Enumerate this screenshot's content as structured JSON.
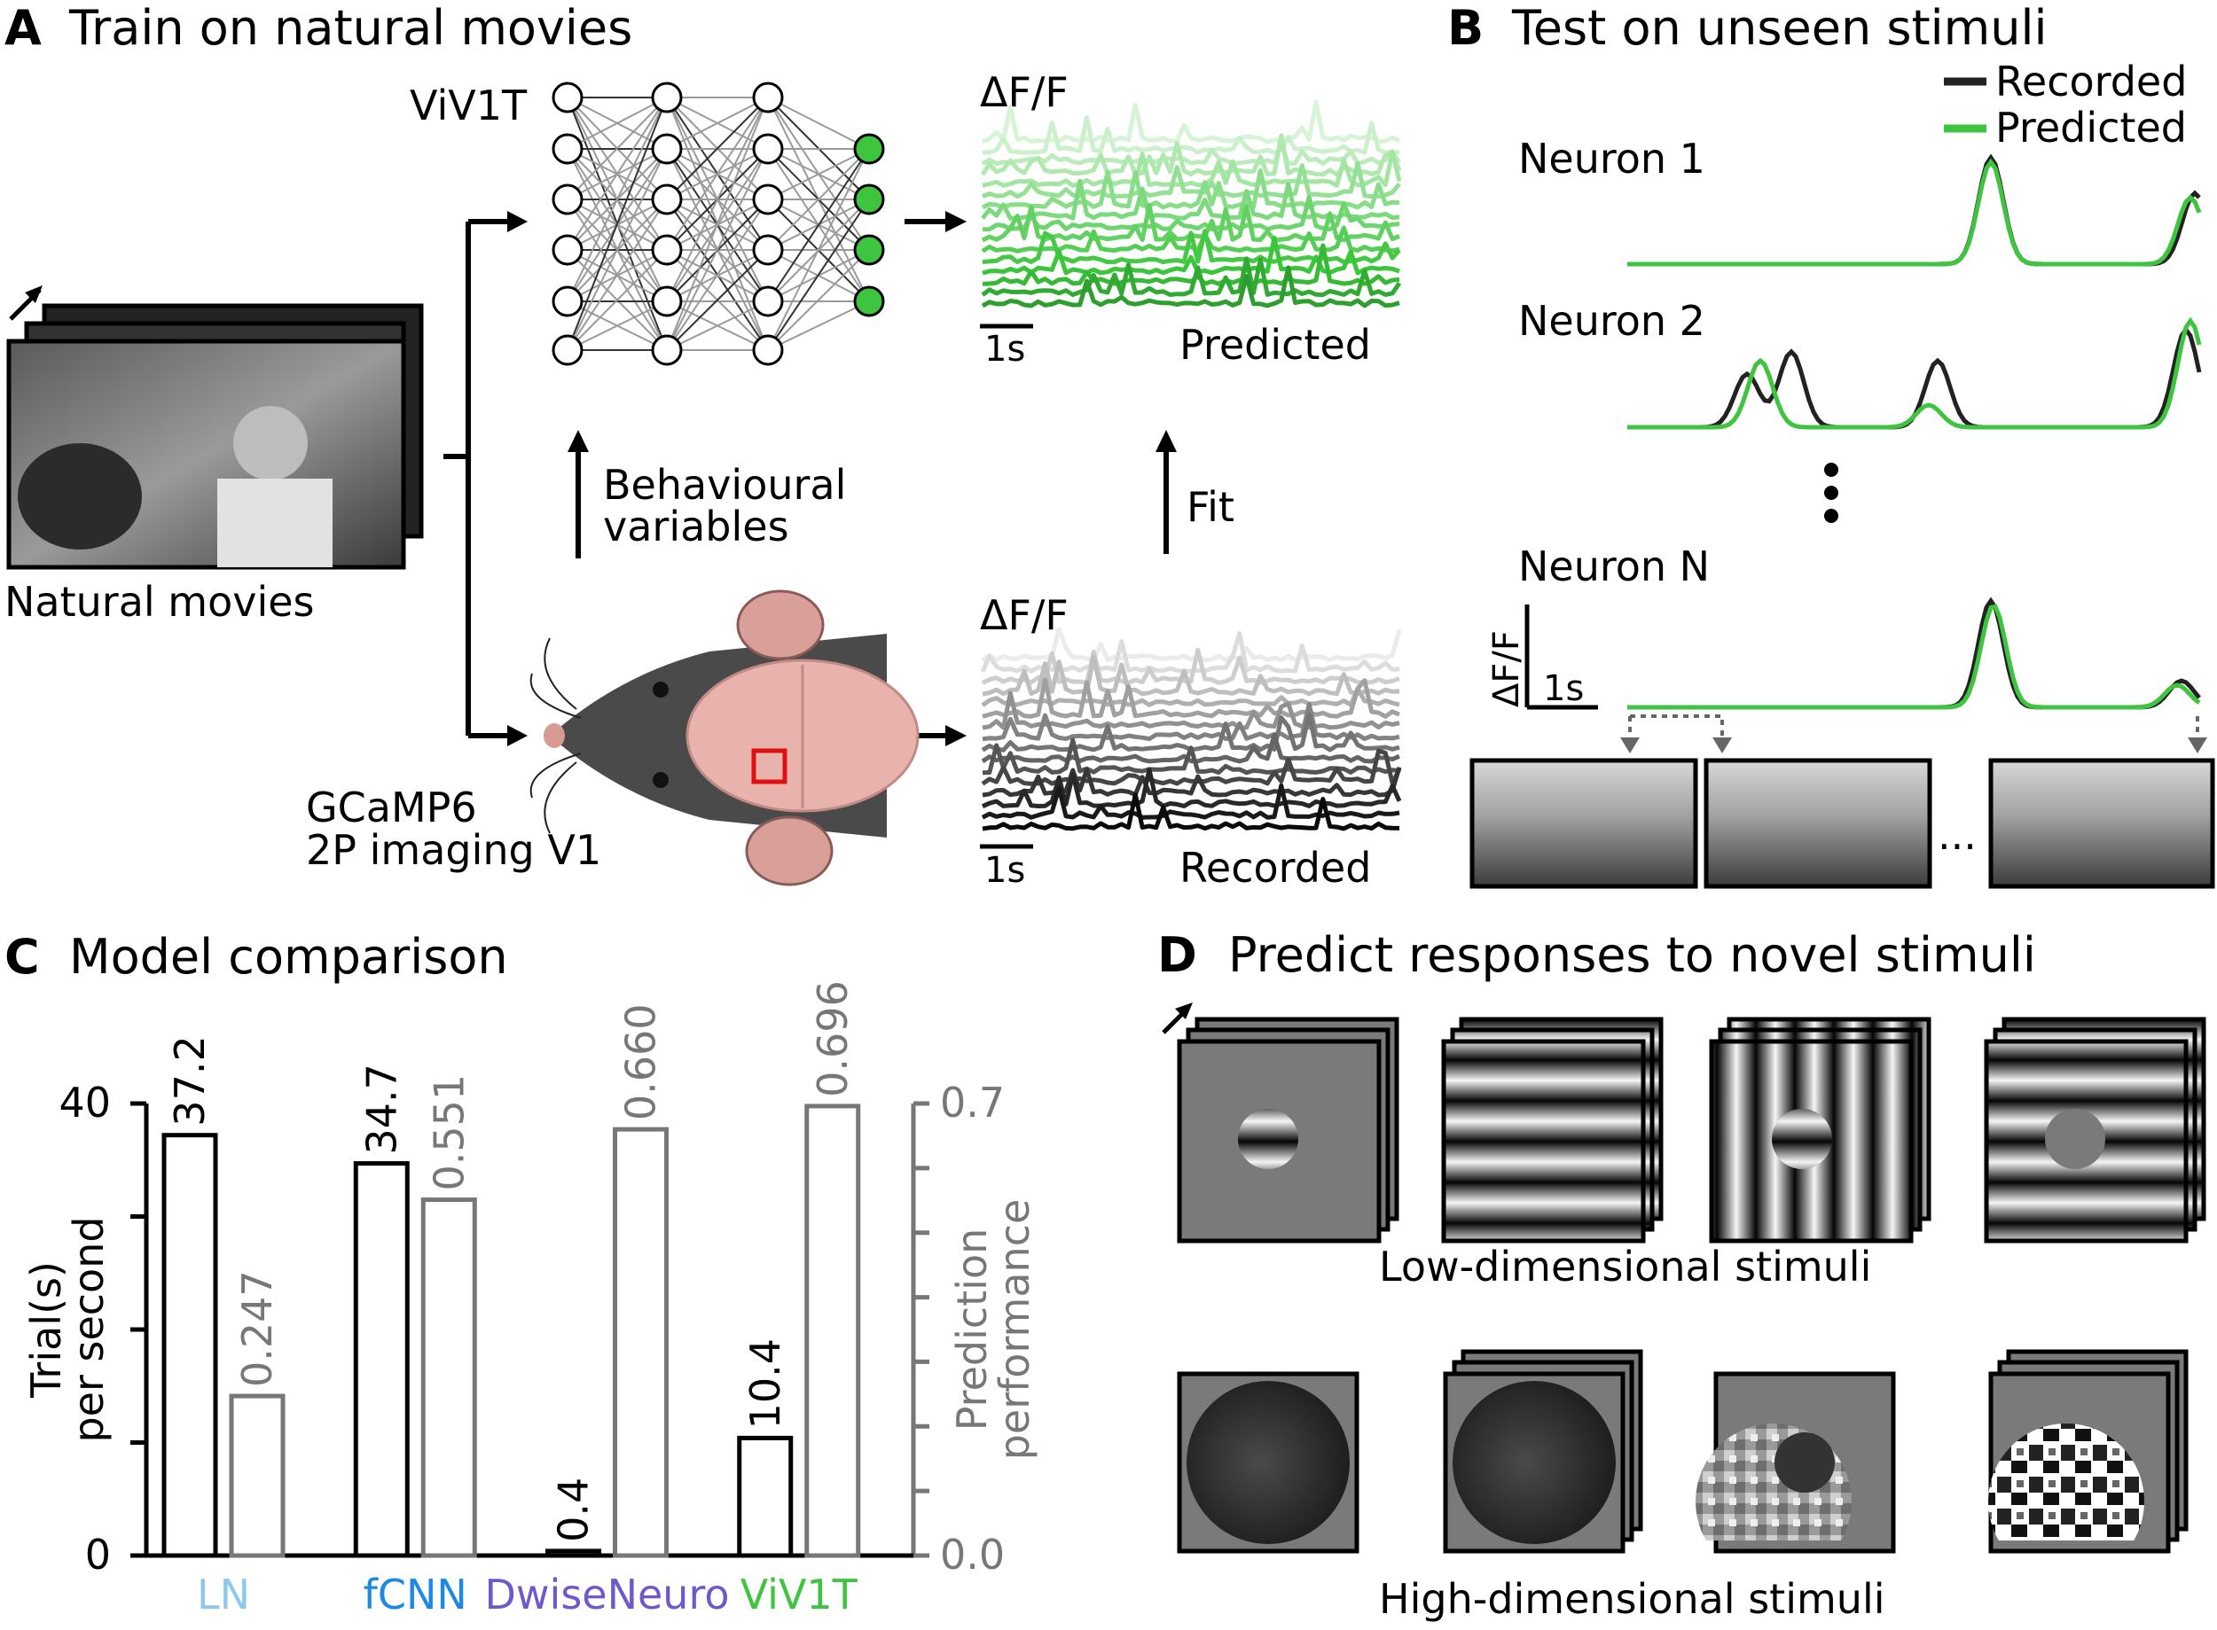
{
  "panel_a": {
    "letter": "A",
    "title": "Train on natural movies",
    "model_name": "ViV1T",
    "movies_label": "Natural movies",
    "behaviour_label_1": "Behavioural",
    "behaviour_label_2": "variables",
    "fit_label": "Fit",
    "mouse_label_1": "GCaMP6",
    "mouse_label_2": "2P imaging V1",
    "dff_label_predicted": "ΔF/F",
    "dff_label_recorded": "ΔF/F",
    "scale_predicted": "1s",
    "scale_recorded": "1s",
    "predicted_label": "Predicted",
    "recorded_label": "Recorded"
  },
  "panel_b": {
    "letter": "B",
    "title": "Test on unseen stimuli",
    "legend": [
      {
        "name": "Recorded",
        "color": "#222222"
      },
      {
        "name": "Predicted",
        "color": "#3fc43f"
      }
    ],
    "neurons": [
      "Neuron 1",
      "Neuron 2",
      "Neuron N"
    ],
    "ellipsis": "⋮",
    "axis_label": "ΔF/F",
    "scale_label": "1s",
    "frame_ellipsis": "..."
  },
  "panel_c": {
    "letter": "C",
    "title": "Model comparison",
    "chart_data": {
      "type": "bar",
      "categories": [
        "LN",
        "fCNN",
        "DwiseNeuro",
        "ViV1T"
      ],
      "category_colors": [
        "#8fc8ef",
        "#1e88e5",
        "#6a5acd",
        "#3fc43f"
      ],
      "series": [
        {
          "name": "Trial(s) per second",
          "axis": "left",
          "values": [
            37.2,
            34.7,
            0.4,
            10.4
          ],
          "labels": [
            "37.2",
            "34.7",
            "0.4",
            "10.4"
          ],
          "color": "#000000"
        },
        {
          "name": "Prediction performance",
          "axis": "right",
          "values": [
            0.247,
            0.551,
            0.66,
            0.696
          ],
          "labels": [
            "0.247",
            "0.551",
            "0.660",
            "0.696"
          ],
          "color": "#777777"
        }
      ],
      "ylabel_left_1": "Trial(s)",
      "ylabel_left_2": "per second",
      "ylabel_right_1": "Prediction",
      "ylabel_right_2": "performance",
      "ylim_left": [
        0,
        40
      ],
      "ylim_right": [
        0,
        0.7
      ],
      "left_ticks": [
        0,
        10,
        20,
        30,
        40
      ],
      "left_tick_labels": [
        "0",
        "40"
      ],
      "right_ticks": [
        0,
        0.1,
        0.2,
        0.3,
        0.4,
        0.5,
        0.6,
        0.7
      ],
      "right_tick_labels": [
        "0.0",
        "0.7"
      ],
      "grid": false
    }
  },
  "panel_d": {
    "letter": "D",
    "title": "Predict responses to novel stimuli",
    "low_label": "Low-dimensional stimuli",
    "high_label": "High-dimensional stimuli"
  },
  "colors": {
    "green": "#3fc43f",
    "recorded": "#222222",
    "arrow": "#000000"
  }
}
